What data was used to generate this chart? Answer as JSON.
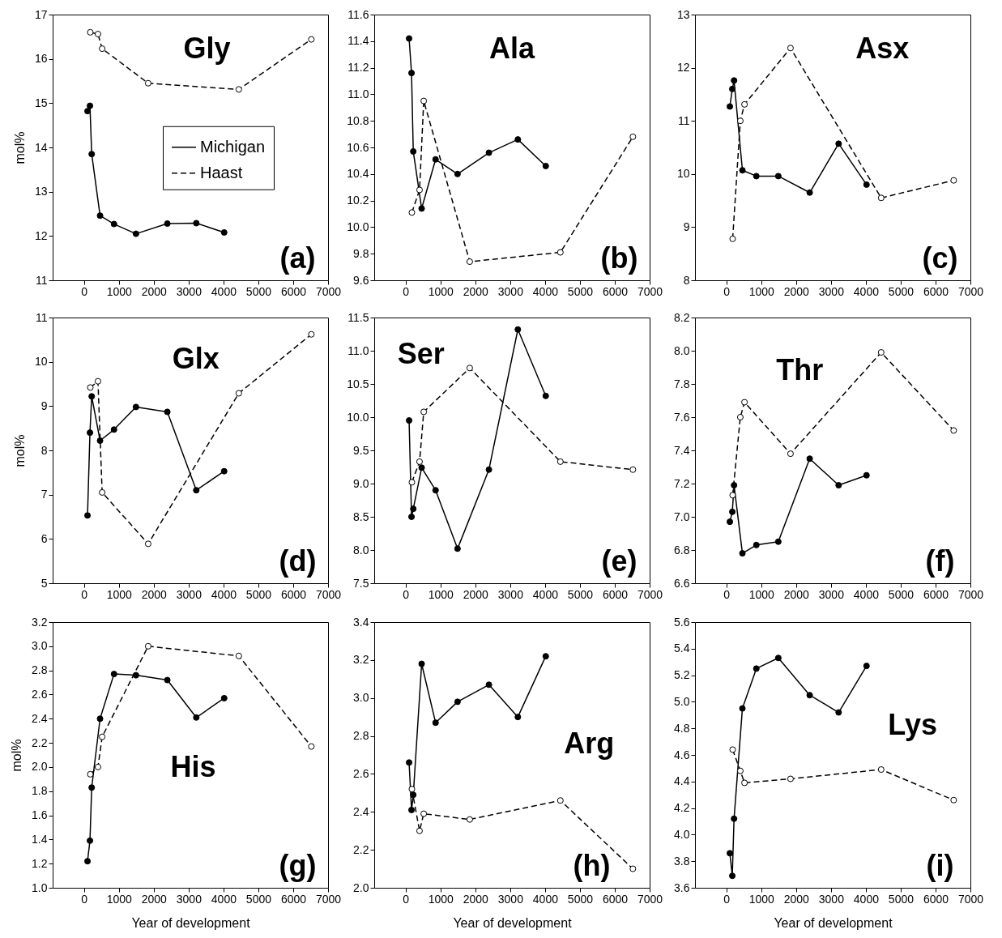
{
  "chart_data": [
    {
      "type": "line",
      "ylabel": "mol%",
      "annotations": [
        "Gly",
        "(a)"
      ],
      "xlim": [
        -900,
        7000
      ],
      "xticks": [
        0,
        1000,
        2000,
        3000,
        4000,
        5000,
        6000,
        7000
      ],
      "ylim": [
        11,
        17
      ],
      "yticks": [
        11,
        12,
        13,
        14,
        15,
        16,
        17
      ],
      "marker": "circle",
      "legend": "right",
      "series": [
        {
          "name": "Michigan",
          "color": "#000000",
          "line_style": "solid",
          "x": [
            100,
            170,
            220,
            460,
            860,
            1490,
            2390,
            3220,
            4020
          ],
          "values": [
            14.82,
            14.94,
            13.85,
            12.46,
            12.27,
            12.05,
            12.28,
            12.29,
            12.08
          ]
        },
        {
          "name": "Haast",
          "color": "#000000",
          "line_style": "dashed",
          "x": [
            180,
            400,
            520,
            1840,
            4440,
            6520
          ],
          "values": [
            16.6,
            16.56,
            16.23,
            15.45,
            15.31,
            16.44
          ]
        }
      ]
    },
    {
      "type": "line",
      "annotations": [
        "Ala",
        "(b)"
      ],
      "xlim": [
        -900,
        7000
      ],
      "xticks": [
        0,
        1000,
        2000,
        3000,
        4000,
        5000,
        6000,
        7000
      ],
      "ylim": [
        9.6,
        11.6
      ],
      "yticks": [
        9.6,
        9.8,
        {
          "value": 10,
          "label": "10.0"
        },
        10.2,
        10.4,
        10.6,
        10.8,
        {
          "value": 11,
          "label": "11.0"
        },
        11.2,
        11.4,
        11.6
      ],
      "marker": "circle",
      "series": [
        {
          "color": "#000000",
          "line_style": "solid",
          "x": [
            100,
            170,
            220,
            460,
            860,
            1490,
            2390,
            3220,
            4020
          ],
          "values": [
            11.42,
            11.16,
            10.57,
            10.14,
            10.51,
            10.4,
            10.56,
            10.66,
            10.46
          ]
        },
        {
          "color": "#000000",
          "line_style": "dashed",
          "x": [
            180,
            400,
            520,
            1840,
            4440,
            6520
          ],
          "values": [
            10.11,
            10.28,
            10.95,
            9.74,
            9.81,
            10.68
          ]
        }
      ]
    },
    {
      "type": "line",
      "annotations": [
        "Asx",
        "(c)"
      ],
      "xlim": [
        -900,
        7000
      ],
      "xticks": [
        0,
        1000,
        2000,
        3000,
        4000,
        5000,
        6000,
        7000
      ],
      "ylim": [
        8,
        13
      ],
      "yticks": [
        8,
        9,
        10,
        11,
        12,
        13
      ],
      "marker": "circle",
      "series": [
        {
          "color": "#000000",
          "line_style": "solid",
          "x": [
            100,
            170,
            220,
            460,
            860,
            1490,
            2390,
            3220,
            4020
          ],
          "values": [
            11.27,
            11.6,
            11.76,
            10.07,
            9.96,
            9.96,
            9.65,
            10.57,
            9.8
          ]
        },
        {
          "color": "#000000",
          "line_style": "dashed",
          "x": [
            180,
            400,
            520,
            1840,
            4440,
            6520
          ],
          "values": [
            8.78,
            11.0,
            11.31,
            12.37,
            9.55,
            9.88
          ]
        }
      ]
    },
    {
      "type": "line",
      "ylabel": "mol%",
      "annotations": [
        "Glx",
        "(d)"
      ],
      "xlim": [
        -900,
        7000
      ],
      "xticks": [
        0,
        1000,
        2000,
        3000,
        4000,
        5000,
        6000,
        7000
      ],
      "ylim": [
        5,
        11
      ],
      "yticks": [
        5,
        6,
        7,
        8,
        9,
        10,
        11
      ],
      "marker": "circle",
      "series": [
        {
          "color": "#000000",
          "line_style": "solid",
          "x": [
            100,
            170,
            220,
            460,
            860,
            1490,
            2390,
            3220,
            4020
          ],
          "values": [
            6.53,
            8.4,
            9.22,
            8.22,
            8.47,
            8.98,
            8.87,
            7.1,
            7.53
          ]
        },
        {
          "color": "#000000",
          "line_style": "dashed",
          "x": [
            180,
            400,
            520,
            1840,
            4440,
            6520
          ],
          "values": [
            9.42,
            9.56,
            7.05,
            5.89,
            9.29,
            10.62
          ]
        }
      ]
    },
    {
      "type": "line",
      "annotations": [
        "Ser",
        "(e)"
      ],
      "xlim": [
        -900,
        7000
      ],
      "xticks": [
        0,
        1000,
        2000,
        3000,
        4000,
        5000,
        6000,
        7000
      ],
      "ylim": [
        7.5,
        11.5
      ],
      "yticks": [
        7.5,
        {
          "value": 8,
          "label": "8.0"
        },
        8.5,
        {
          "value": 9,
          "label": "9.0"
        },
        9.5,
        {
          "value": 10,
          "label": "10.0"
        },
        10.5,
        {
          "value": 11,
          "label": "11.0"
        },
        11.5
      ],
      "marker": "circle",
      "series": [
        {
          "color": "#000000",
          "line_style": "solid",
          "x": [
            100,
            170,
            220,
            460,
            860,
            1490,
            2390,
            3220,
            4020
          ],
          "values": [
            9.95,
            8.5,
            8.62,
            9.24,
            8.9,
            8.02,
            9.21,
            11.32,
            10.32
          ]
        },
        {
          "color": "#000000",
          "line_style": "dashed",
          "x": [
            180,
            400,
            520,
            1840,
            4440,
            6520
          ],
          "values": [
            9.02,
            9.33,
            10.08,
            10.74,
            9.33,
            9.21
          ]
        }
      ]
    },
    {
      "type": "line",
      "annotations": [
        "Thr",
        "(f)"
      ],
      "xlim": [
        -900,
        7000
      ],
      "xticks": [
        0,
        1000,
        2000,
        3000,
        4000,
        5000,
        6000,
        7000
      ],
      "ylim": [
        6.6,
        8.2
      ],
      "yticks": [
        6.6,
        6.8,
        {
          "value": 7,
          "label": "7.0"
        },
        7.2,
        7.4,
        7.6,
        7.8,
        {
          "value": 8,
          "label": "8.0"
        },
        8.2
      ],
      "marker": "circle",
      "series": [
        {
          "color": "#000000",
          "line_style": "solid",
          "x": [
            100,
            170,
            220,
            460,
            860,
            1490,
            2390,
            3220,
            4020
          ],
          "values": [
            6.97,
            7.03,
            7.19,
            6.78,
            6.83,
            6.85,
            7.35,
            7.19,
            7.25
          ]
        },
        {
          "color": "#000000",
          "line_style": "dashed",
          "x": [
            180,
            400,
            520,
            1840,
            4440,
            6520
          ],
          "values": [
            7.13,
            7.6,
            7.69,
            7.38,
            7.99,
            7.52
          ]
        }
      ]
    },
    {
      "type": "line",
      "xlabel": "Year of development",
      "ylabel": "mol%",
      "annotations": [
        "His",
        "(g)"
      ],
      "xlim": [
        -900,
        7000
      ],
      "xticks": [
        0,
        1000,
        2000,
        3000,
        4000,
        5000,
        6000,
        7000
      ],
      "ylim": [
        1,
        3.2
      ],
      "yticks": [
        {
          "value": 1,
          "label": "1.0"
        },
        1.2,
        1.4,
        1.6,
        1.8,
        {
          "value": 2,
          "label": "2.0"
        },
        2.2,
        2.4,
        2.6,
        2.8,
        {
          "value": 3,
          "label": "3.0"
        },
        3.2
      ],
      "marker": "circle",
      "series": [
        {
          "color": "#000000",
          "line_style": "solid",
          "x": [
            100,
            170,
            220,
            460,
            860,
            1490,
            2390,
            3220,
            4020
          ],
          "values": [
            1.22,
            1.39,
            1.83,
            2.4,
            2.77,
            2.76,
            2.72,
            2.41,
            2.57
          ]
        },
        {
          "color": "#000000",
          "line_style": "dashed",
          "x": [
            180,
            400,
            520,
            1840,
            4440,
            6520
          ],
          "values": [
            1.94,
            2.0,
            2.25,
            3.0,
            2.92,
            2.17
          ]
        }
      ]
    },
    {
      "type": "line",
      "xlabel": "Year of development",
      "annotations": [
        "Arg",
        "(h)"
      ],
      "xlim": [
        -900,
        7000
      ],
      "xticks": [
        0,
        1000,
        2000,
        3000,
        4000,
        5000,
        6000,
        7000
      ],
      "ylim": [
        2,
        3.4
      ],
      "yticks": [
        {
          "value": 2,
          "label": "2.0"
        },
        2.2,
        2.4,
        2.6,
        2.8,
        {
          "value": 3,
          "label": "3.0"
        },
        3.2,
        3.4
      ],
      "marker": "circle",
      "series": [
        {
          "color": "#000000",
          "line_style": "solid",
          "x": [
            100,
            170,
            220,
            460,
            860,
            1490,
            2390,
            3220,
            4020
          ],
          "values": [
            2.66,
            2.41,
            2.49,
            3.18,
            2.87,
            2.98,
            3.07,
            2.9,
            3.22
          ]
        },
        {
          "color": "#000000",
          "line_style": "dashed",
          "x": [
            180,
            400,
            520,
            1840,
            4440,
            6520
          ],
          "values": [
            2.52,
            2.3,
            2.39,
            2.36,
            2.46,
            2.1
          ]
        }
      ]
    },
    {
      "type": "line",
      "xlabel": "Year of development",
      "annotations": [
        "Lys",
        "(i)"
      ],
      "xlim": [
        -900,
        7000
      ],
      "xticks": [
        0,
        1000,
        2000,
        3000,
        4000,
        5000,
        6000,
        7000
      ],
      "ylim": [
        3.6,
        5.6
      ],
      "yticks": [
        3.6,
        3.8,
        {
          "value": 4,
          "label": "4.0"
        },
        4.2,
        4.4,
        4.6,
        4.8,
        {
          "value": 5,
          "label": "5.0"
        },
        5.2,
        5.4,
        5.6
      ],
      "marker": "circle",
      "series": [
        {
          "color": "#000000",
          "line_style": "solid",
          "x": [
            100,
            170,
            220,
            460,
            860,
            1490,
            2390,
            3220,
            4020
          ],
          "values": [
            3.86,
            3.69,
            4.12,
            4.95,
            5.25,
            5.33,
            5.05,
            4.92,
            5.27
          ]
        },
        {
          "color": "#000000",
          "line_style": "dashed",
          "x": [
            180,
            400,
            520,
            1840,
            4440,
            6520
          ],
          "values": [
            4.64,
            4.48,
            4.39,
            4.42,
            4.49,
            4.26
          ]
        }
      ]
    }
  ]
}
